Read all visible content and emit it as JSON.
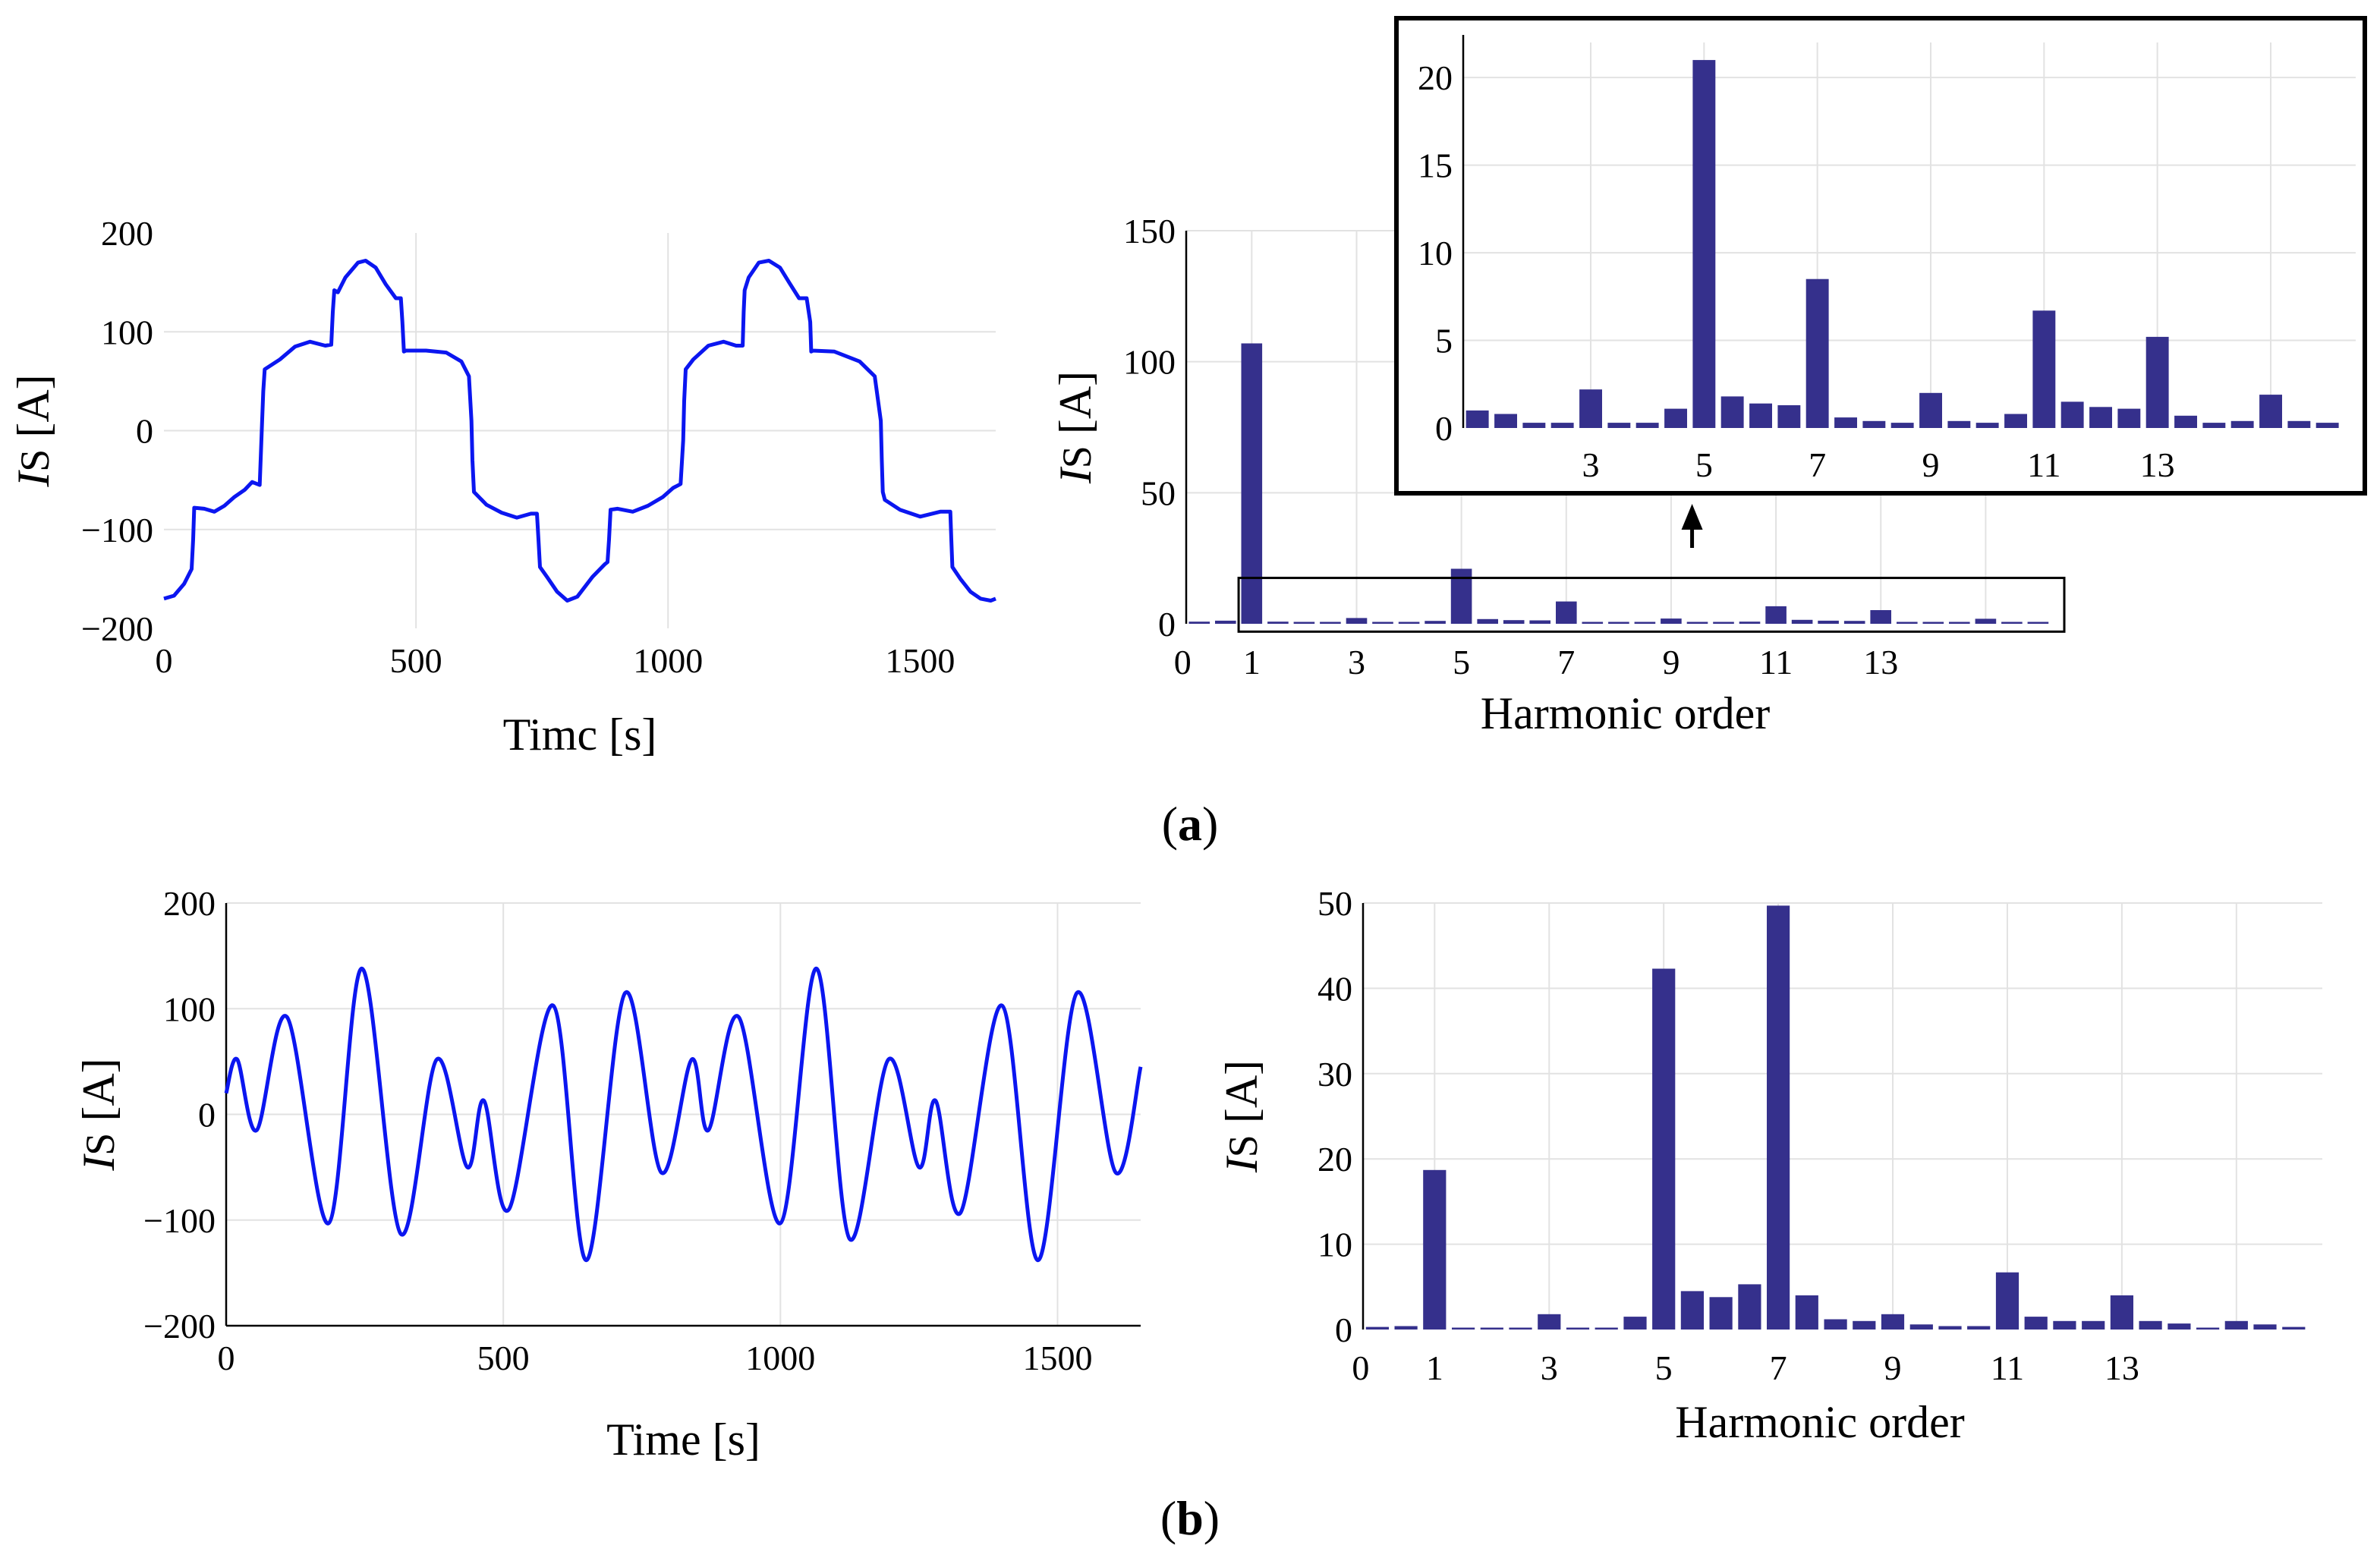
{
  "figure": {
    "panel_a": {
      "open": "(",
      "letter": "a",
      "close": ")"
    },
    "panel_b": {
      "open": "(",
      "letter": "b",
      "close": ")"
    }
  },
  "chart_data": [
    {
      "id": "a-time",
      "type": "line",
      "title": "",
      "xlabel": "Timc [s]",
      "ylabel": {
        "symbol": "I",
        "sub": "S",
        "unit": " [A]"
      },
      "xlim": [
        0,
        1650
      ],
      "ylim": [
        -200,
        200
      ],
      "xticks": [
        "0",
        "500",
        "1000",
        "1500"
      ],
      "yticks": [
        "200",
        "100",
        "0",
        "−100",
        "−200"
      ],
      "grid": true,
      "series": [
        {
          "name": "Is",
          "color": "#0b16f0",
          "x": [
            0,
            20,
            40,
            55,
            58,
            60,
            80,
            100,
            120,
            140,
            160,
            175,
            190,
            194,
            197,
            200,
            230,
            260,
            290,
            320,
            332,
            335,
            338,
            345,
            360,
            385,
            400,
            420,
            440,
            460,
            470,
            473,
            476,
            480,
            520,
            560,
            590,
            605,
            610,
            612,
            615,
            640,
            670,
            700,
            728,
            740,
            743,
            746,
            760,
            780,
            800,
            820,
            850,
            875,
            880,
            883,
            886,
            900,
            930,
            960,
            990,
            1010,
            1025,
            1030,
            1032,
            1035,
            1050,
            1080,
            1110,
            1135,
            1148,
            1150,
            1152,
            1160,
            1180,
            1200,
            1222,
            1240,
            1260,
            1275,
            1282,
            1284,
            1287,
            1330,
            1380,
            1410,
            1422,
            1424,
            1426,
            1430,
            1460,
            1500,
            1540,
            1560,
            1562,
            1564,
            1580,
            1600,
            1620,
            1640,
            1650
          ],
          "y": [
            -170,
            -167,
            -155,
            -140,
            -110,
            -78,
            -79,
            -82,
            -76,
            -67,
            -60,
            -52,
            -55,
            0,
            40,
            62,
            72,
            85,
            90,
            86,
            87,
            120,
            142,
            140,
            155,
            170,
            172,
            165,
            148,
            134,
            134,
            110,
            80,
            81,
            81,
            79,
            70,
            55,
            10,
            -30,
            -62,
            -75,
            -83,
            -88,
            -84,
            -84,
            -110,
            -138,
            -148,
            -163,
            -172,
            -168,
            -148,
            -135,
            -133,
            -110,
            -80,
            -79,
            -82,
            -76,
            -67,
            -58,
            -54,
            -10,
            30,
            62,
            72,
            86,
            90,
            86,
            86,
            120,
            142,
            155,
            170,
            172,
            165,
            150,
            134,
            134,
            110,
            80,
            81,
            80,
            70,
            55,
            10,
            -30,
            -62,
            -70,
            -80,
            -87,
            -82,
            -82,
            -110,
            -138,
            -150,
            -163,
            -170,
            -172,
            -170
          ]
        }
      ]
    },
    {
      "id": "a-harm",
      "type": "bar",
      "title": "",
      "xlabel": "Harmonic order",
      "ylabel": {
        "symbol": "I",
        "sub": "S",
        "unit": " [A]"
      },
      "xlim": [
        -0.25,
        16.5
      ],
      "ylim": [
        0,
        150
      ],
      "xticks": [
        "0",
        "1",
        "3",
        "5",
        "7",
        "9",
        "11",
        "13"
      ],
      "yticks": [
        "150",
        "100",
        "50",
        "0"
      ],
      "grid": true,
      "x": [
        0,
        0.5,
        1,
        1.5,
        2,
        2.5,
        3,
        3.5,
        4,
        4.5,
        5,
        5.5,
        6,
        6.5,
        7,
        7.5,
        8,
        8.5,
        9,
        9.5,
        10,
        10.5,
        11,
        11.5,
        12,
        12.5,
        13,
        13.5,
        14,
        14.5,
        15,
        15.5,
        16
      ],
      "values": [
        0.8,
        1.2,
        107,
        0.8,
        0.3,
        0.3,
        2.2,
        0.3,
        0.3,
        1.1,
        21,
        1.8,
        1.4,
        1.3,
        8.5,
        0.6,
        0.4,
        0.3,
        2.0,
        0.4,
        0.3,
        0.8,
        6.7,
        1.5,
        1.2,
        1.1,
        5.2,
        0.7,
        0.3,
        0.4,
        1.9,
        0.4,
        0.3
      ],
      "inset": {
        "xlim": [
          0.75,
          16.5
        ],
        "ylim": [
          0,
          22
        ],
        "xticks": [
          "3",
          "5",
          "7",
          "9",
          "11",
          "13"
        ],
        "yticks": [
          "20",
          "15",
          "10",
          "5",
          "0"
        ]
      }
    },
    {
      "id": "b-time",
      "type": "line",
      "title": "",
      "xlabel": "Time [s]",
      "ylabel": {
        "symbol": "I",
        "sub": "S",
        "unit": " [A]"
      },
      "xlim": [
        0,
        1650
      ],
      "ylim": [
        -200,
        200
      ],
      "xticks": [
        "0",
        "500",
        "1000",
        "1500"
      ],
      "yticks": [
        "200",
        "100",
        "0",
        "−100",
        "−200"
      ],
      "grid": true,
      "series": [
        {
          "name": "Is",
          "color": "#0b16f0",
          "x": [
            0,
            20,
            55,
            110,
            185,
            245,
            315,
            380,
            435,
            465,
            510,
            590,
            650,
            720,
            785,
            840,
            870,
            925,
            1000,
            1065,
            1125,
            1195,
            1250,
            1280,
            1325,
            1400,
            1465,
            1535,
            1605,
            1650
          ],
          "y": [
            20,
            52,
            -15,
            92,
            -103,
            138,
            -113,
            52,
            -50,
            13,
            -90,
            103,
            -138,
            115,
            -55,
            52,
            -15,
            92,
            -103,
            138,
            -118,
            52,
            -50,
            13,
            -93,
            103,
            -138,
            115,
            -55,
            45
          ]
        }
      ]
    },
    {
      "id": "b-harm",
      "type": "bar",
      "title": "",
      "xlabel": "Harmonic order",
      "ylabel": {
        "symbol": "I",
        "sub": "S",
        "unit": " [A]"
      },
      "xlim": [
        -0.25,
        16.5
      ],
      "ylim": [
        0,
        50
      ],
      "xticks": [
        "0",
        "1",
        "3",
        "5",
        "7",
        "9",
        "11",
        "13"
      ],
      "yticks": [
        "50",
        "40",
        "30",
        "20",
        "10",
        "0"
      ],
      "grid": true,
      "x": [
        0,
        0.5,
        1,
        1.5,
        2,
        2.5,
        3,
        3.5,
        4,
        4.5,
        5,
        5.5,
        6,
        6.5,
        7,
        7.5,
        8,
        8.5,
        9,
        9.5,
        10,
        10.5,
        11,
        11.5,
        12,
        12.5,
        13,
        13.5,
        14,
        14.5,
        15,
        15.5,
        16
      ],
      "values": [
        0.3,
        0.4,
        18.7,
        0.2,
        0.2,
        0.2,
        1.8,
        0.2,
        0.2,
        1.5,
        42.3,
        4.5,
        3.8,
        5.3,
        49.7,
        4.0,
        1.2,
        1.0,
        1.8,
        0.6,
        0.4,
        0.4,
        6.7,
        1.5,
        1.0,
        1.0,
        4.0,
        1.0,
        0.7,
        0.2,
        1.0,
        0.6,
        0.3
      ]
    }
  ]
}
